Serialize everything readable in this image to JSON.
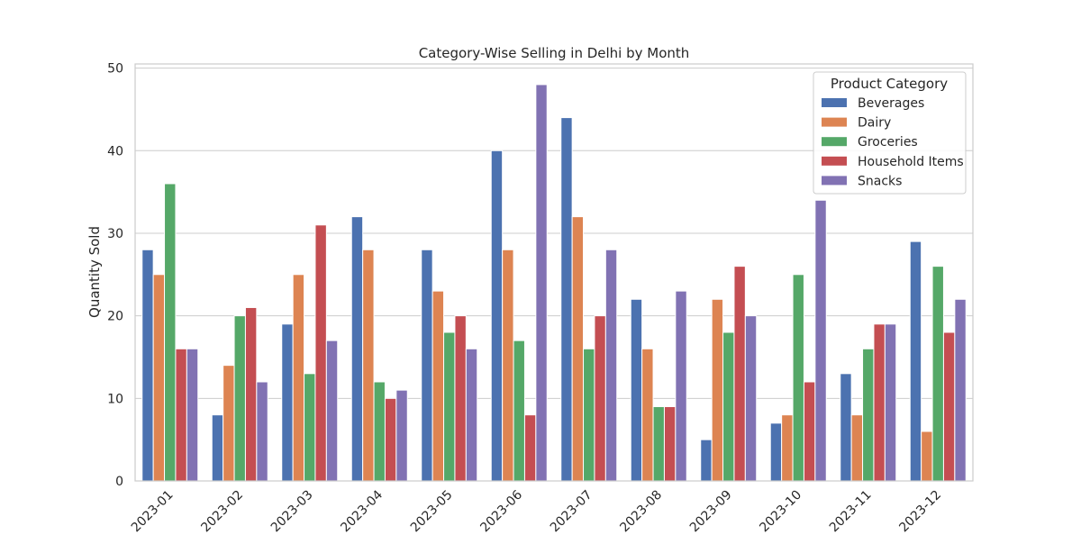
{
  "chart_data": {
    "type": "bar",
    "title": "Category-Wise Selling in Delhi by Month",
    "xlabel": "",
    "ylabel": "Quantity Sold",
    "ylim": [
      0,
      50.5
    ],
    "yticks": [
      0,
      10,
      20,
      30,
      40,
      50
    ],
    "grid": true,
    "legend_position": "top-right",
    "legend_title": "Product Category",
    "categories": [
      "2023-01",
      "2023-02",
      "2023-03",
      "2023-04",
      "2023-05",
      "2023-06",
      "2023-07",
      "2023-08",
      "2023-09",
      "2023-10",
      "2023-11",
      "2023-12"
    ],
    "series": [
      {
        "name": "Beverages",
        "color": "#4c72b0",
        "values": [
          28,
          8,
          19,
          32,
          28,
          40,
          44,
          22,
          5,
          7,
          13,
          29
        ]
      },
      {
        "name": "Dairy",
        "color": "#dd8452",
        "values": [
          25,
          14,
          25,
          28,
          23,
          28,
          32,
          16,
          22,
          8,
          8,
          6
        ]
      },
      {
        "name": "Groceries",
        "color": "#55a868",
        "values": [
          36,
          20,
          13,
          12,
          18,
          17,
          16,
          9,
          18,
          25,
          16,
          26
        ]
      },
      {
        "name": "Household Items",
        "color": "#c44e52",
        "values": [
          16,
          21,
          31,
          10,
          20,
          8,
          20,
          9,
          26,
          12,
          19,
          18
        ]
      },
      {
        "name": "Snacks",
        "color": "#8172b3",
        "values": [
          16,
          12,
          17,
          11,
          16,
          48,
          28,
          23,
          20,
          34,
          19,
          22
        ]
      }
    ]
  }
}
